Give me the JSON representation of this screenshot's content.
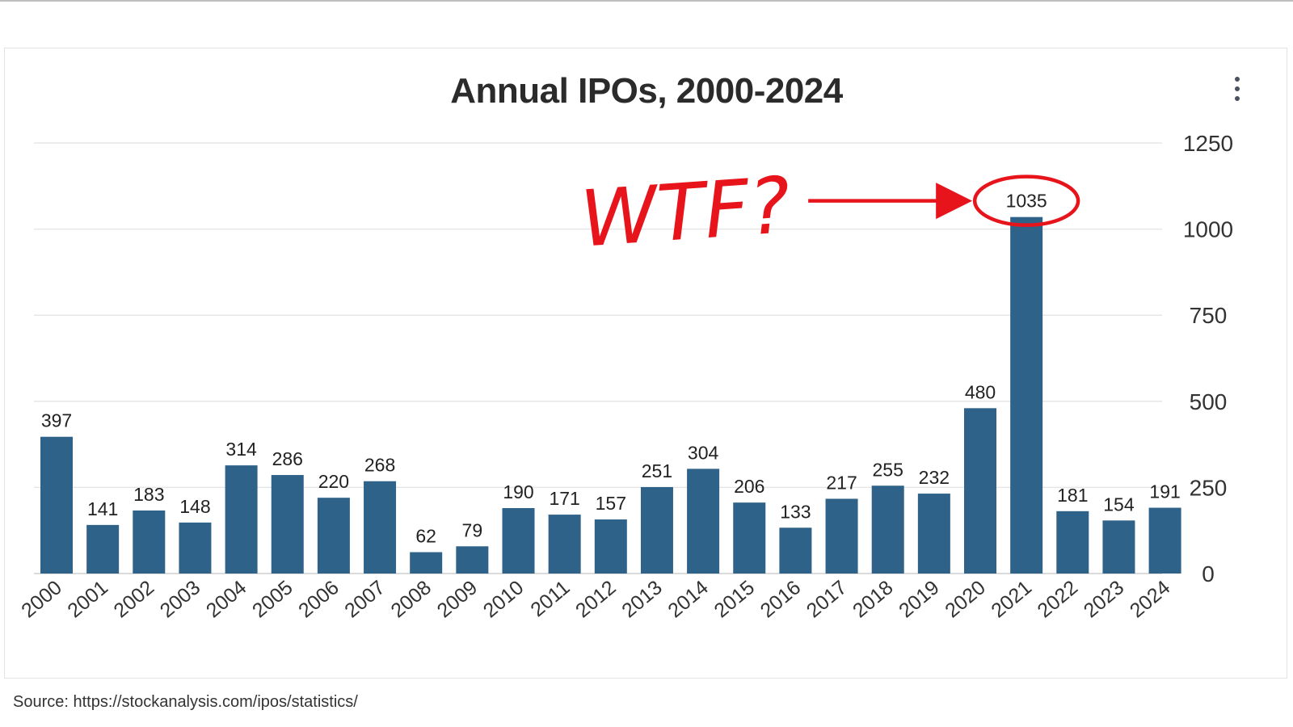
{
  "chart_data": {
    "type": "bar",
    "title": "Annual IPOs, 2000-2024",
    "categories": [
      "2000",
      "2001",
      "2002",
      "2003",
      "2004",
      "2005",
      "2006",
      "2007",
      "2008",
      "2009",
      "2010",
      "2011",
      "2012",
      "2013",
      "2014",
      "2015",
      "2016",
      "2017",
      "2018",
      "2019",
      "2020",
      "2021",
      "2022",
      "2023",
      "2024"
    ],
    "values": [
      397,
      141,
      183,
      148,
      314,
      286,
      220,
      268,
      62,
      79,
      190,
      171,
      157,
      251,
      304,
      206,
      133,
      217,
      255,
      232,
      480,
      1035,
      181,
      154,
      191
    ],
    "ylim": [
      0,
      1250
    ],
    "yticks": [
      0,
      250,
      500,
      750,
      1000,
      1250
    ],
    "y_axis_side": "right",
    "grid": true,
    "legend": "none",
    "bar_color": "#2e6289",
    "annotation": {
      "text": "WTF?",
      "color": "#e8141b",
      "target_category": "2021"
    }
  },
  "source_text": "Source: https://stockanalysis.com/ipos/statistics/"
}
